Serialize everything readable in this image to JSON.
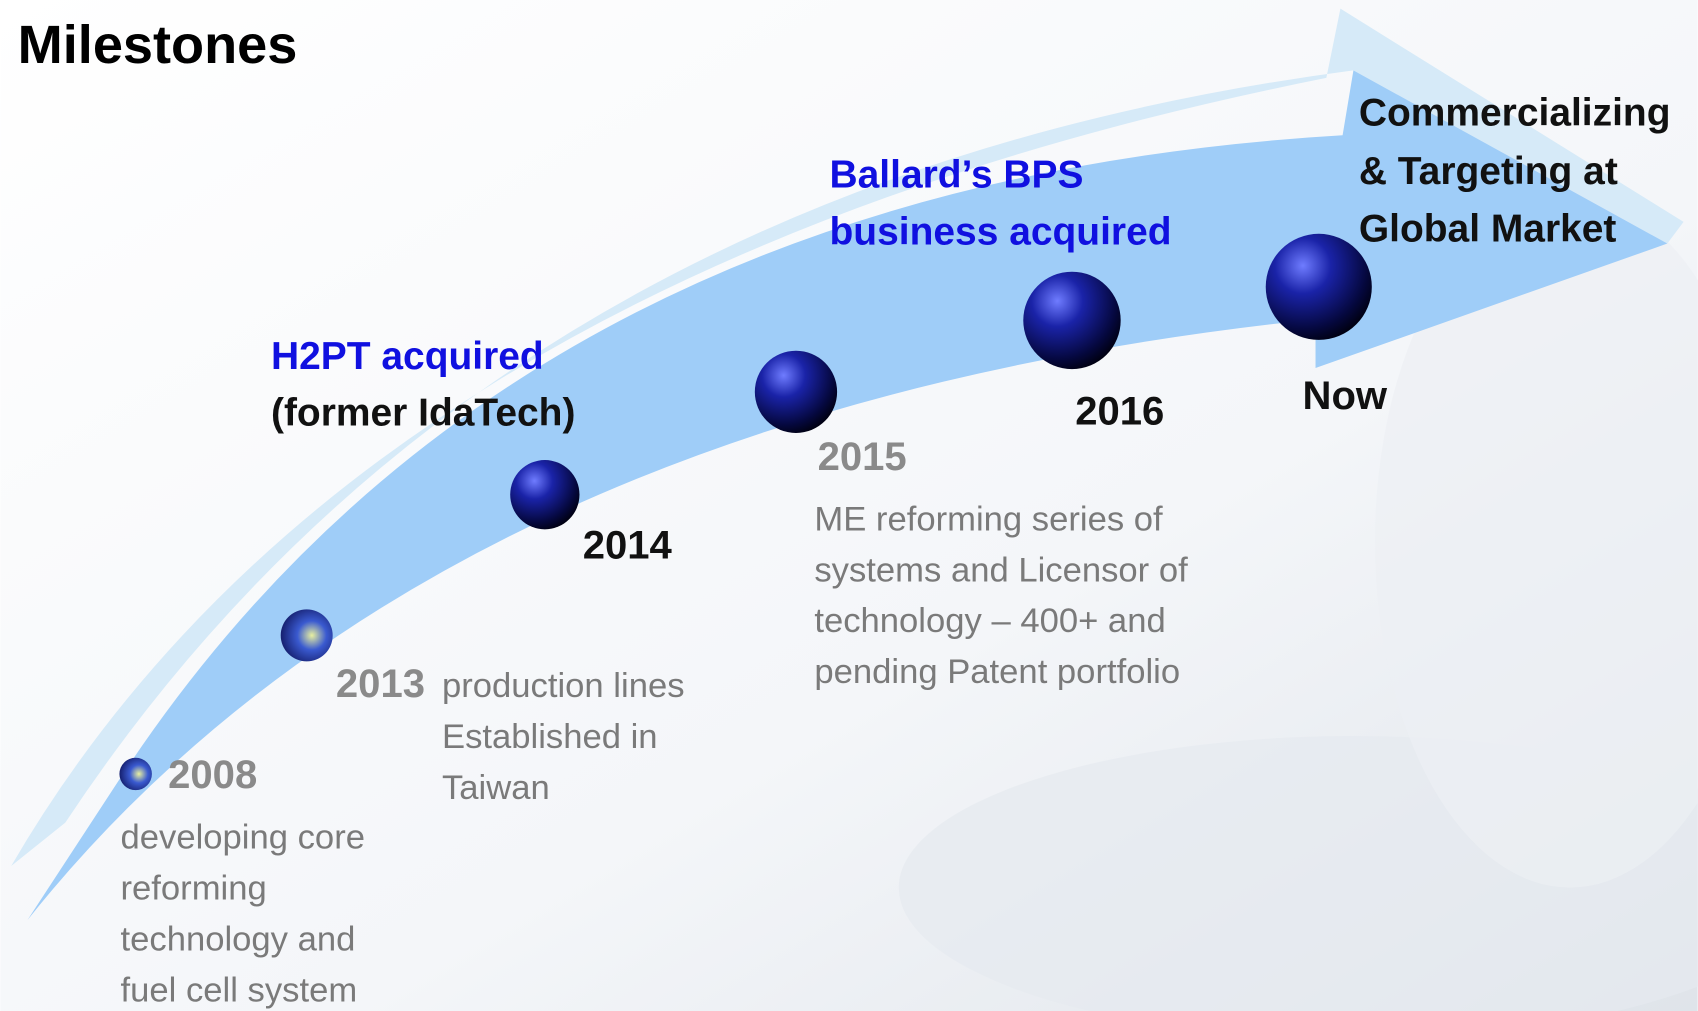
{
  "header": {
    "title": "Milestones"
  },
  "milestones": [
    {
      "year": "2008",
      "description": [
        "developing core",
        "reforming",
        "technology and",
        "fuel cell system"
      ]
    },
    {
      "year": "2013",
      "description": [
        "production lines",
        "Established in",
        "Taiwan"
      ]
    },
    {
      "year": "2014",
      "heading": [
        "H2PT acquired",
        "(former IdaTech)"
      ]
    },
    {
      "year": "2015",
      "description": [
        "ME reforming series of",
        "systems and Licensor of",
        "technology – 400+ and",
        "pending Patent portfolio"
      ]
    },
    {
      "year": "2016",
      "heading": [
        "Ballard’s BPS",
        "business acquired"
      ]
    },
    {
      "year": "Now",
      "heading": [
        "Commercializing",
        "& Targeting at",
        "Global Market"
      ]
    }
  ]
}
